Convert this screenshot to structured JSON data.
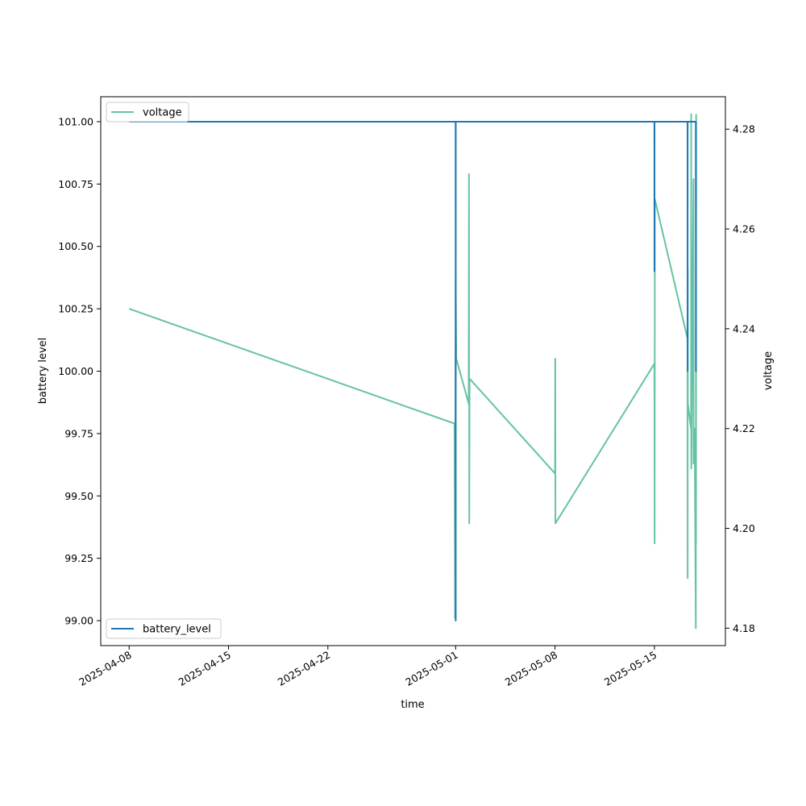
{
  "chart_data": {
    "type": "line",
    "title": "",
    "xlabel": "time",
    "ylabel_left": "battery level",
    "ylabel_right": "voltage",
    "grid": false,
    "x_ticks": [
      "2025-04-08",
      "2025-04-15",
      "2025-04-22",
      "2025-05-01",
      "2025-05-08",
      "2025-05-15"
    ],
    "y_left_ticks": [
      "99.00",
      "99.25",
      "99.50",
      "99.75",
      "100.00",
      "100.25",
      "100.50",
      "100.75",
      "101.00"
    ],
    "y_right_ticks": [
      "4.18",
      "4.20",
      "4.22",
      "4.24",
      "4.26",
      "4.28"
    ],
    "xlim": [
      "2025-04-06",
      "2025-05-20"
    ],
    "ylim_left": [
      98.9,
      101.1
    ],
    "ylim_right": [
      4.1765,
      4.2865
    ],
    "series": [
      {
        "name": "battery_level",
        "axis": "left",
        "color": "#1f77b4",
        "legend_position": "lower left",
        "points": [
          [
            "2025-04-08T00:00",
            101.0
          ],
          [
            "2025-04-30T23:55",
            101.0
          ],
          [
            "2025-05-01T00:00",
            100.4
          ],
          [
            "2025-05-01T00:05",
            99.0
          ],
          [
            "2025-05-01T00:10",
            101.0
          ],
          [
            "2025-05-15T00:00",
            101.0
          ],
          [
            "2025-05-15T00:05",
            100.4
          ],
          [
            "2025-05-15T00:10",
            101.0
          ],
          [
            "2025-05-17T08:00",
            101.0
          ],
          [
            "2025-05-17T08:05",
            100.0
          ],
          [
            "2025-05-17T08:10",
            101.0
          ],
          [
            "2025-05-17T22:00",
            101.0
          ],
          [
            "2025-05-17T22:05",
            100.0
          ],
          [
            "2025-05-17T22:10",
            101.0
          ]
        ]
      },
      {
        "name": "voltage",
        "axis": "right",
        "color": "#66c2a5",
        "legend_position": "upper left",
        "points": [
          [
            "2025-04-08T00:00",
            4.244
          ],
          [
            "2025-04-30T22:00",
            4.221
          ],
          [
            "2025-04-30T23:00",
            4.182
          ],
          [
            "2025-05-01T00:00",
            4.25
          ],
          [
            "2025-05-01T01:00",
            4.234
          ],
          [
            "2025-05-01T22:00",
            4.225
          ],
          [
            "2025-05-01T22:30",
            4.271
          ],
          [
            "2025-05-01T23:00",
            4.201
          ],
          [
            "2025-05-01T23:30",
            4.23
          ],
          [
            "2025-05-08T00:00",
            4.211
          ],
          [
            "2025-05-08T00:20",
            4.234
          ],
          [
            "2025-05-08T00:40",
            4.201
          ],
          [
            "2025-05-15T00:00",
            4.233
          ],
          [
            "2025-05-15T00:20",
            4.197
          ],
          [
            "2025-05-15T00:40",
            4.266
          ],
          [
            "2025-05-17T08:00",
            4.238
          ],
          [
            "2025-05-17T08:10",
            4.19
          ],
          [
            "2025-05-17T08:20",
            4.252
          ],
          [
            "2025-05-17T08:30",
            4.225
          ],
          [
            "2025-05-17T14:00",
            4.22
          ],
          [
            "2025-05-17T14:10",
            4.283
          ],
          [
            "2025-05-17T14:20",
            4.212
          ],
          [
            "2025-05-17T18:00",
            4.27
          ],
          [
            "2025-05-17T18:10",
            4.213
          ],
          [
            "2025-05-17T20:00",
            4.22
          ],
          [
            "2025-05-17T22:00",
            4.18
          ],
          [
            "2025-05-17T22:10",
            4.248
          ],
          [
            "2025-05-17T22:20",
            4.197
          ],
          [
            "2025-05-17T22:30",
            4.283
          ]
        ]
      }
    ]
  }
}
